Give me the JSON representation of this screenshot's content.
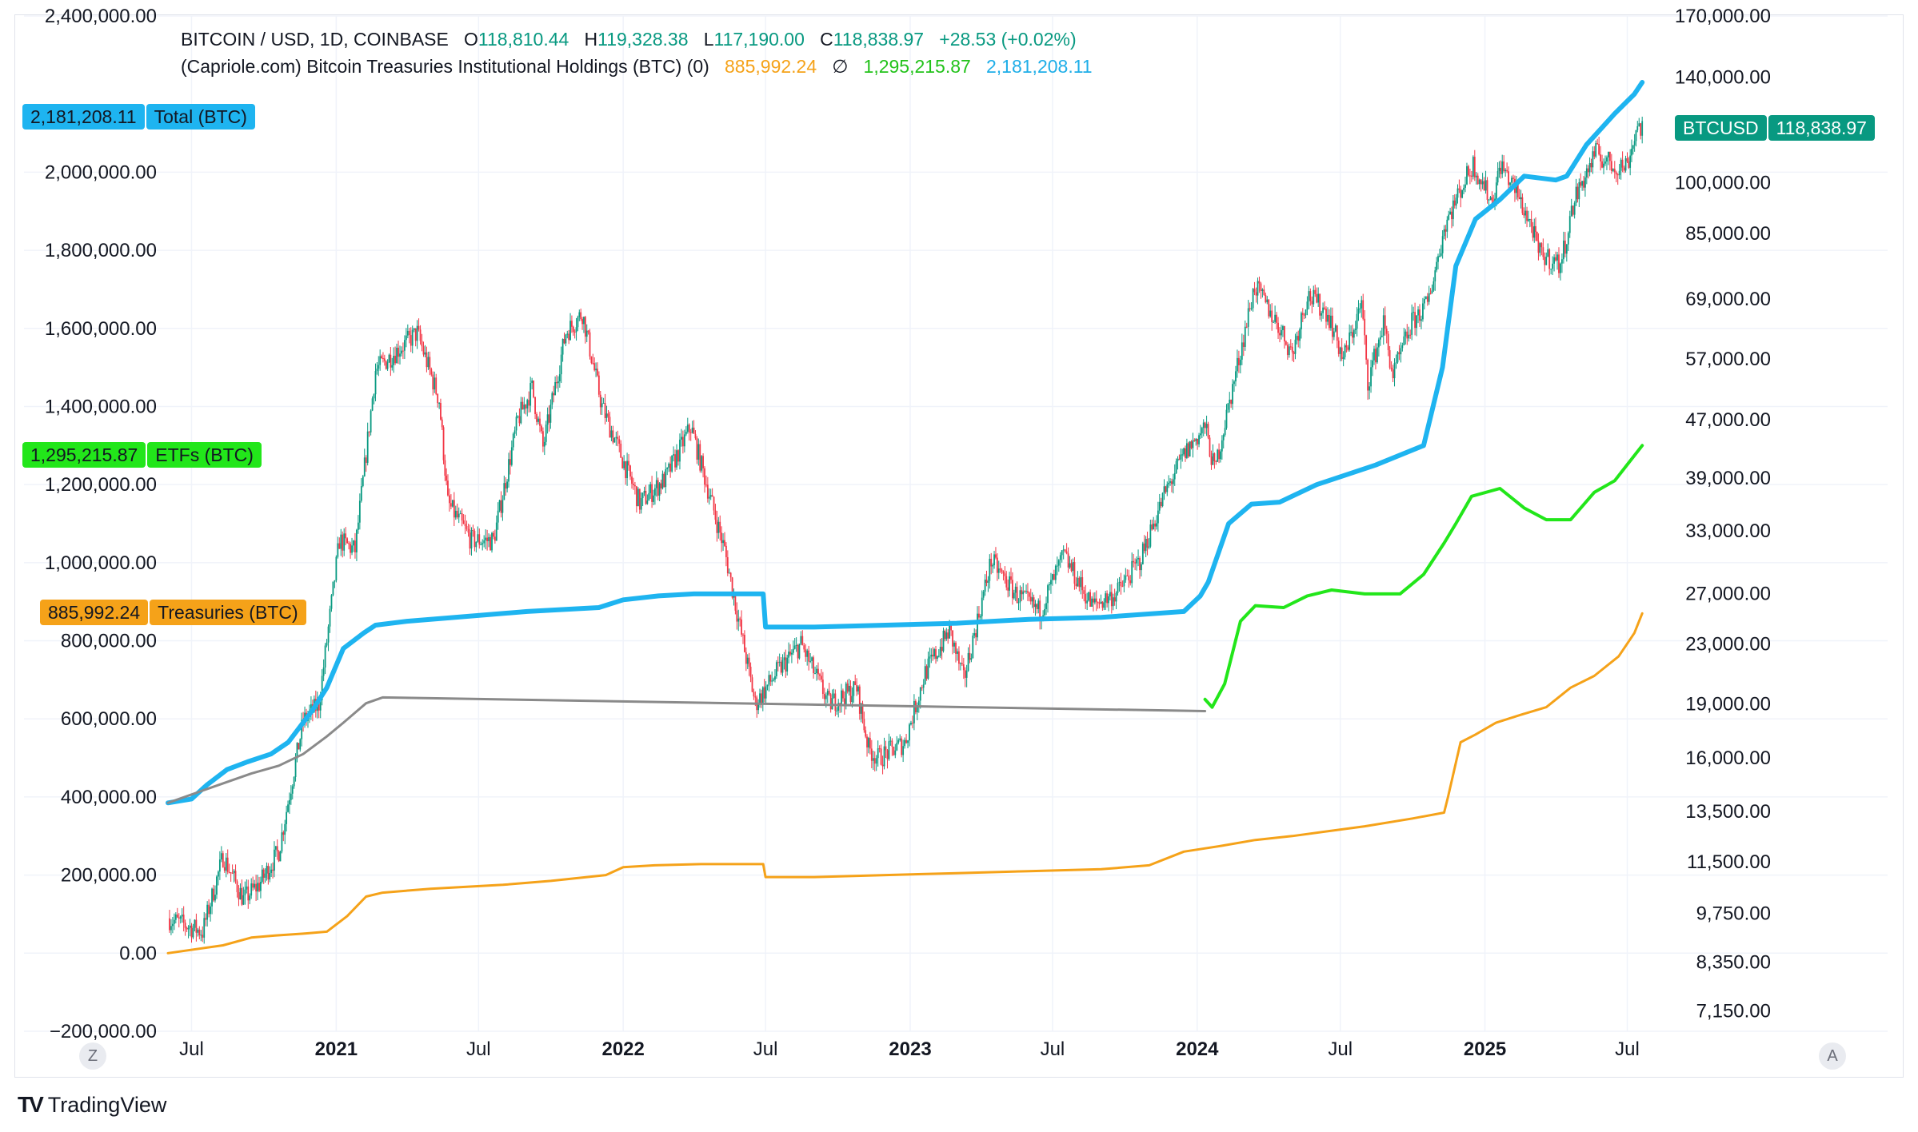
{
  "header": {
    "symbol": "BITCOIN / USD, 1D, COINBASE",
    "open_label": "O",
    "open": "118,810.44",
    "high_label": "H",
    "high": "119,328.38",
    "low_label": "L",
    "low": "117,190.00",
    "close_label": "C",
    "close": "118,838.97",
    "change": "+28.53 (+0.02%)",
    "indicator": "(Capriole.com) Bitcoin Treasuries Institutional Holdings (BTC) (0)",
    "ind_treasuries": "885,992.24",
    "ind_null": "∅",
    "ind_etfs": "1,295,215.87",
    "ind_total": "2,181,208.11"
  },
  "tags": {
    "total_value": "2,181,208.11",
    "total_name": "Total (BTC)",
    "etfs_value": "1,295,215.87",
    "etfs_name": "ETFs (BTC)",
    "treasuries_value": "885,992.24",
    "treasuries_name": "Treasuries (BTC)",
    "btc_name": "BTCUSD",
    "btc_value": "118,838.97"
  },
  "buttons": {
    "left": "Z",
    "right": "A"
  },
  "brand": {
    "name": "TradingView",
    "mark": "TV"
  },
  "colors": {
    "total": "#1eb4f0",
    "etfs": "#22e61a",
    "treasuries": "#f5a219",
    "gray": "#8a8a8a",
    "up": "#089981",
    "down": "#f23645",
    "grid": "#f0f3fa"
  },
  "chart_data": {
    "type": "line",
    "x_range": [
      "2020-06-01",
      "2025-07-31"
    ],
    "x_ticks": [
      {
        "date": "2020-07-01",
        "label": "Jul",
        "bold": false
      },
      {
        "date": "2021-01-01",
        "label": "2021",
        "bold": true
      },
      {
        "date": "2021-07-01",
        "label": "Jul",
        "bold": false
      },
      {
        "date": "2022-01-01",
        "label": "2022",
        "bold": true
      },
      {
        "date": "2022-07-01",
        "label": "Jul",
        "bold": false
      },
      {
        "date": "2023-01-01",
        "label": "2023",
        "bold": true
      },
      {
        "date": "2023-07-01",
        "label": "Jul",
        "bold": false
      },
      {
        "date": "2024-01-01",
        "label": "2024",
        "bold": true
      },
      {
        "date": "2024-07-01",
        "label": "Jul",
        "bold": false
      },
      {
        "date": "2025-01-01",
        "label": "2025",
        "bold": true
      },
      {
        "date": "2025-07-01",
        "label": "Jul",
        "bold": false
      }
    ],
    "left_axis": {
      "ylim": [
        -200000,
        2400000
      ],
      "ticks": [
        {
          "v": 2400000,
          "label": "2,400,000.00"
        },
        {
          "v": 2000000,
          "label": "2,000,000.00"
        },
        {
          "v": 1800000,
          "label": "1,800,000.00"
        },
        {
          "v": 1600000,
          "label": "1,600,000.00"
        },
        {
          "v": 1400000,
          "label": "1,400,000.00"
        },
        {
          "v": 1200000,
          "label": "1,200,000.00"
        },
        {
          "v": 1000000,
          "label": "1,000,000.00"
        },
        {
          "v": 800000,
          "label": "800,000.00"
        },
        {
          "v": 600000,
          "label": "600,000.00"
        },
        {
          "v": 400000,
          "label": "400,000.00"
        },
        {
          "v": 200000,
          "label": "200,000.00"
        },
        {
          "v": 0,
          "label": "0.00"
        },
        {
          "v": -200000,
          "label": "−200,000.00"
        }
      ]
    },
    "right_axis": {
      "scale": "log",
      "ylim": [
        6700,
        170000
      ],
      "ticks": [
        {
          "v": 170000,
          "label": "170,000.00"
        },
        {
          "v": 140000,
          "label": "140,000.00"
        },
        {
          "v": 100000,
          "label": "100,000.00"
        },
        {
          "v": 85000,
          "label": "85,000.00"
        },
        {
          "v": 69000,
          "label": "69,000.00"
        },
        {
          "v": 57000,
          "label": "57,000.00"
        },
        {
          "v": 47000,
          "label": "47,000.00"
        },
        {
          "v": 39000,
          "label": "39,000.00"
        },
        {
          "v": 33000,
          "label": "33,000.00"
        },
        {
          "v": 27000,
          "label": "27,000.00"
        },
        {
          "v": 23000,
          "label": "23,000.00"
        },
        {
          "v": 19000,
          "label": "19,000.00"
        },
        {
          "v": 16000,
          "label": "16,000.00"
        },
        {
          "v": 13500,
          "label": "13,500.00"
        },
        {
          "v": 11500,
          "label": "11,500.00"
        },
        {
          "v": 9750,
          "label": "9,750.00"
        },
        {
          "v": 8350,
          "label": "8,350.00"
        },
        {
          "v": 7150,
          "label": "7,150.00"
        }
      ]
    },
    "grid": true,
    "series": [
      {
        "name": "Total (BTC)",
        "color_key": "total",
        "width": 6,
        "axis": "left",
        "x": [
          "2020-06-01",
          "2020-07-01",
          "2020-07-20",
          "2020-08-15",
          "2020-09-10",
          "2020-10-10",
          "2020-11-01",
          "2020-12-01",
          "2020-12-20",
          "2021-01-10",
          "2021-02-05",
          "2021-02-20",
          "2021-04-01",
          "2021-06-01",
          "2021-09-01",
          "2021-12-01",
          "2022-01-01",
          "2022-02-15",
          "2022-04-01",
          "2022-06-28",
          "2022-07-01",
          "2022-09-01",
          "2022-12-01",
          "2023-03-01",
          "2023-06-01",
          "2023-09-01",
          "2023-12-15",
          "2024-01-05",
          "2024-01-15",
          "2024-02-10",
          "2024-03-10",
          "2024-04-15",
          "2024-06-01",
          "2024-08-15",
          "2024-10-15",
          "2024-11-08",
          "2024-11-25",
          "2024-12-20",
          "2025-01-20",
          "2025-02-20",
          "2025-04-01",
          "2025-04-15",
          "2025-05-10",
          "2025-06-15",
          "2025-07-10",
          "2025-07-20"
        ],
        "y": [
          385000,
          395000,
          430000,
          470000,
          490000,
          510000,
          540000,
          620000,
          680000,
          780000,
          820000,
          840000,
          850000,
          860000,
          875000,
          885000,
          905000,
          915000,
          920000,
          920000,
          835000,
          835000,
          840000,
          845000,
          855000,
          860000,
          875000,
          915000,
          950000,
          1100000,
          1150000,
          1155000,
          1200000,
          1250000,
          1300000,
          1500000,
          1760000,
          1880000,
          1930000,
          1990000,
          1980000,
          1990000,
          2070000,
          2150000,
          2200000,
          2230000
        ]
      },
      {
        "name": "ETFs (BTC)",
        "color_key": "etfs",
        "width": 4,
        "axis": "left",
        "x": [
          "2024-01-11",
          "2024-01-20",
          "2024-02-05",
          "2024-02-25",
          "2024-03-15",
          "2024-04-20",
          "2024-05-20",
          "2024-06-20",
          "2024-08-01",
          "2024-09-15",
          "2024-10-15",
          "2024-11-10",
          "2024-11-25",
          "2024-12-15",
          "2025-01-20",
          "2025-02-20",
          "2025-03-20",
          "2025-04-20",
          "2025-05-20",
          "2025-06-15",
          "2025-07-20"
        ],
        "y": [
          650000,
          630000,
          690000,
          850000,
          890000,
          885000,
          915000,
          930000,
          920000,
          920000,
          970000,
          1050000,
          1100000,
          1170000,
          1190000,
          1140000,
          1110000,
          1110000,
          1180000,
          1210000,
          1300000
        ]
      },
      {
        "name": "Treasuries (BTC)",
        "color_key": "treasuries",
        "width": 3,
        "axis": "left",
        "x": [
          "2020-06-01",
          "2020-08-10",
          "2020-09-15",
          "2020-10-15",
          "2020-11-20",
          "2020-12-20",
          "2021-01-15",
          "2021-02-08",
          "2021-03-01",
          "2021-05-01",
          "2021-08-01",
          "2021-10-01",
          "2021-12-10",
          "2022-01-01",
          "2022-02-10",
          "2022-04-10",
          "2022-06-28",
          "2022-07-01",
          "2022-09-01",
          "2022-12-01",
          "2023-03-01",
          "2023-06-01",
          "2023-09-01",
          "2023-11-01",
          "2023-12-15",
          "2024-02-01",
          "2024-03-15",
          "2024-05-01",
          "2024-08-01",
          "2024-10-01",
          "2024-11-10",
          "2024-11-15",
          "2024-12-01",
          "2024-12-20",
          "2025-01-15",
          "2025-02-15",
          "2025-03-20",
          "2025-04-20",
          "2025-05-20",
          "2025-06-20",
          "2025-07-10",
          "2025-07-20"
        ],
        "y": [
          0,
          20000,
          40000,
          45000,
          50000,
          55000,
          95000,
          145000,
          155000,
          165000,
          175000,
          185000,
          200000,
          220000,
          225000,
          228000,
          228000,
          195000,
          195000,
          200000,
          205000,
          210000,
          215000,
          225000,
          260000,
          275000,
          290000,
          300000,
          325000,
          345000,
          360000,
          400000,
          540000,
          560000,
          590000,
          610000,
          630000,
          680000,
          710000,
          760000,
          820000,
          870000
        ]
      },
      {
        "name": "",
        "color_key": "gray",
        "width": 3,
        "axis": "left",
        "x": [
          "2020-06-01",
          "2020-07-20",
          "2020-09-15",
          "2020-10-20",
          "2020-11-20",
          "2020-12-20",
          "2021-01-10",
          "2021-02-08",
          "2021-03-01",
          "2024-01-11"
        ],
        "y": [
          385000,
          420000,
          460000,
          480000,
          510000,
          555000,
          590000,
          640000,
          655000,
          620000
        ]
      },
      {
        "name": "BTCUSD",
        "type": "candlestick",
        "axis": "right",
        "x": [
          "2020-06-01",
          "2020-07-15",
          "2020-08-10",
          "2020-09-05",
          "2020-09-25",
          "2020-10-20",
          "2020-11-20",
          "2020-12-10",
          "2021-01-05",
          "2021-01-25",
          "2021-02-20",
          "2021-03-15",
          "2021-04-14",
          "2021-05-12",
          "2021-05-23",
          "2021-06-22",
          "2021-07-20",
          "2021-08-20",
          "2021-09-07",
          "2021-09-21",
          "2021-10-20",
          "2021-11-10",
          "2021-12-05",
          "2022-01-22",
          "2022-02-24",
          "2022-03-28",
          "2022-05-10",
          "2022-06-18",
          "2022-07-15",
          "2022-08-15",
          "2022-09-20",
          "2022-10-25",
          "2022-11-09",
          "2022-11-21",
          "2022-12-25",
          "2023-01-20",
          "2023-02-20",
          "2023-03-10",
          "2023-04-14",
          "2023-05-15",
          "2023-06-15",
          "2023-07-15",
          "2023-08-20",
          "2023-09-20",
          "2023-10-20",
          "2023-11-20",
          "2023-12-15",
          "2024-01-11",
          "2024-01-23",
          "2024-02-15",
          "2024-03-14",
          "2024-04-15",
          "2024-05-01",
          "2024-05-20",
          "2024-06-15",
          "2024-07-05",
          "2024-07-28",
          "2024-08-05",
          "2024-08-25",
          "2024-09-06",
          "2024-09-30",
          "2024-10-20",
          "2024-11-12",
          "2024-12-05",
          "2024-12-17",
          "2025-01-10",
          "2025-01-21",
          "2025-02-10",
          "2025-03-03",
          "2025-03-10",
          "2025-04-07",
          "2025-04-25",
          "2025-05-22",
          "2025-06-15",
          "2025-07-01",
          "2025-07-14",
          "2025-07-20"
        ],
        "y": [
          9600,
          9200,
          11700,
          10200,
          10700,
          11900,
          18000,
          19000,
          32000,
          31000,
          55000,
          58000,
          62000,
          50000,
          36000,
          32000,
          32000,
          47000,
          52000,
          43000,
          62000,
          66000,
          49000,
          36000,
          39000,
          46000,
          31000,
          19000,
          21000,
          23000,
          19000,
          20000,
          16500,
          16000,
          16800,
          21000,
          24000,
          20500,
          30000,
          27000,
          25500,
          30500,
          26000,
          27000,
          30000,
          37000,
          42000,
          46000,
          40000,
          52000,
          72000,
          63000,
          58000,
          70000,
          66000,
          57000,
          68000,
          53000,
          64000,
          54000,
          64000,
          68000,
          88000,
          100000,
          106000,
          94000,
          106000,
          97000,
          86000,
          80000,
          77000,
          95000,
          110000,
          105000,
          106000,
          120000,
          118838.97
        ]
      }
    ]
  }
}
